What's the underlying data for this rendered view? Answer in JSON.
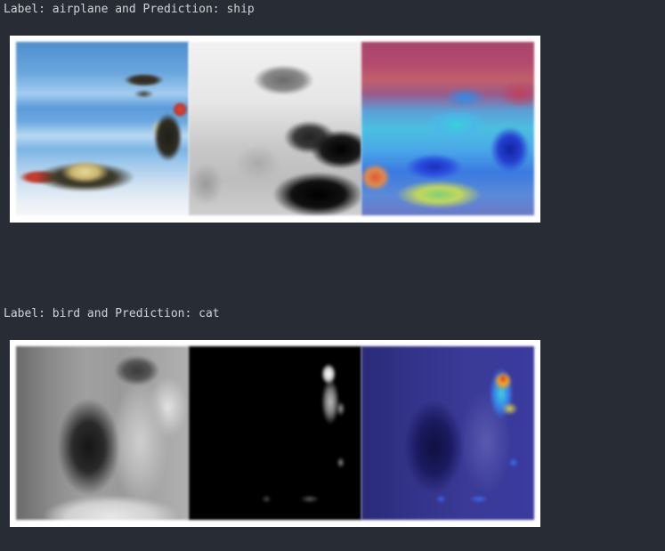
{
  "notebook_output": {
    "results": [
      {
        "caption": "Label: airplane and Prediction: ship",
        "label": "airplane",
        "prediction": "ship",
        "panels": [
          "original-image",
          "saliency-map",
          "heatmap-overlay"
        ]
      },
      {
        "caption": "Label: bird and Prediction: cat",
        "label": "bird",
        "prediction": "cat",
        "panels": [
          "original-image",
          "saliency-map",
          "heatmap-overlay"
        ]
      }
    ]
  },
  "colors": {
    "background": "#282c34",
    "caption_text": "#cfd3da",
    "figure_frame": "#ffffff"
  }
}
